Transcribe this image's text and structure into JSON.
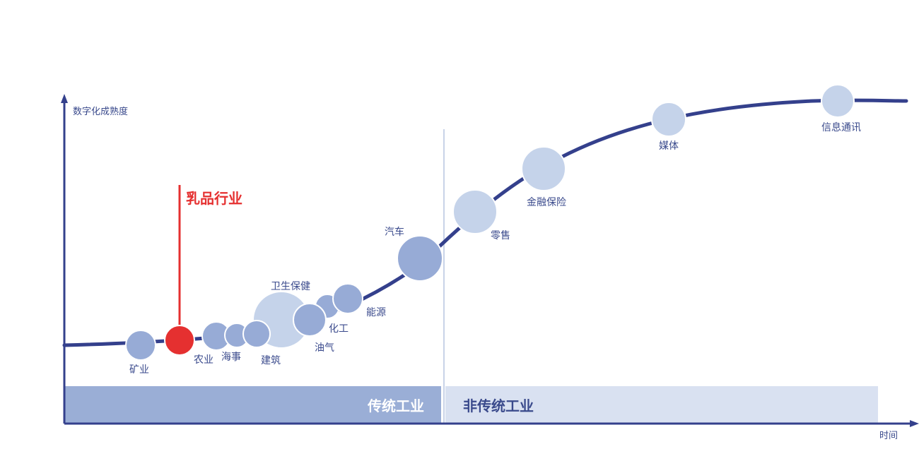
{
  "y_axis_label": "数字化成熟度",
  "x_axis_label": "时间",
  "highlight": {
    "label": "乳品行业",
    "color": "#e53030"
  },
  "bands": [
    {
      "label": "传统工业",
      "color": "#9aaed6",
      "text_color": "#ffffff"
    },
    {
      "label": "非传统工业",
      "color": "#d9e1f1",
      "text_color": "#3a4a8c"
    }
  ],
  "industries": [
    {
      "name": "矿业"
    },
    {
      "name": "乳品行业"
    },
    {
      "name": "农业"
    },
    {
      "name": "海事"
    },
    {
      "name": "建筑"
    },
    {
      "name": "卫生保健"
    },
    {
      "name": "油气"
    },
    {
      "name": "化工"
    },
    {
      "name": "能源"
    },
    {
      "name": "汽车"
    },
    {
      "name": "零售"
    },
    {
      "name": "金融保险"
    },
    {
      "name": "媒体"
    },
    {
      "name": "信息通讯"
    }
  ],
  "colors": {
    "curve": "#34408c",
    "axis": "#34408c",
    "divider": "#c8d3e8",
    "bubble_dark": "#97abd6",
    "bubble_light": "#c5d3ea",
    "bubble_stroke": "#ffffff"
  }
}
